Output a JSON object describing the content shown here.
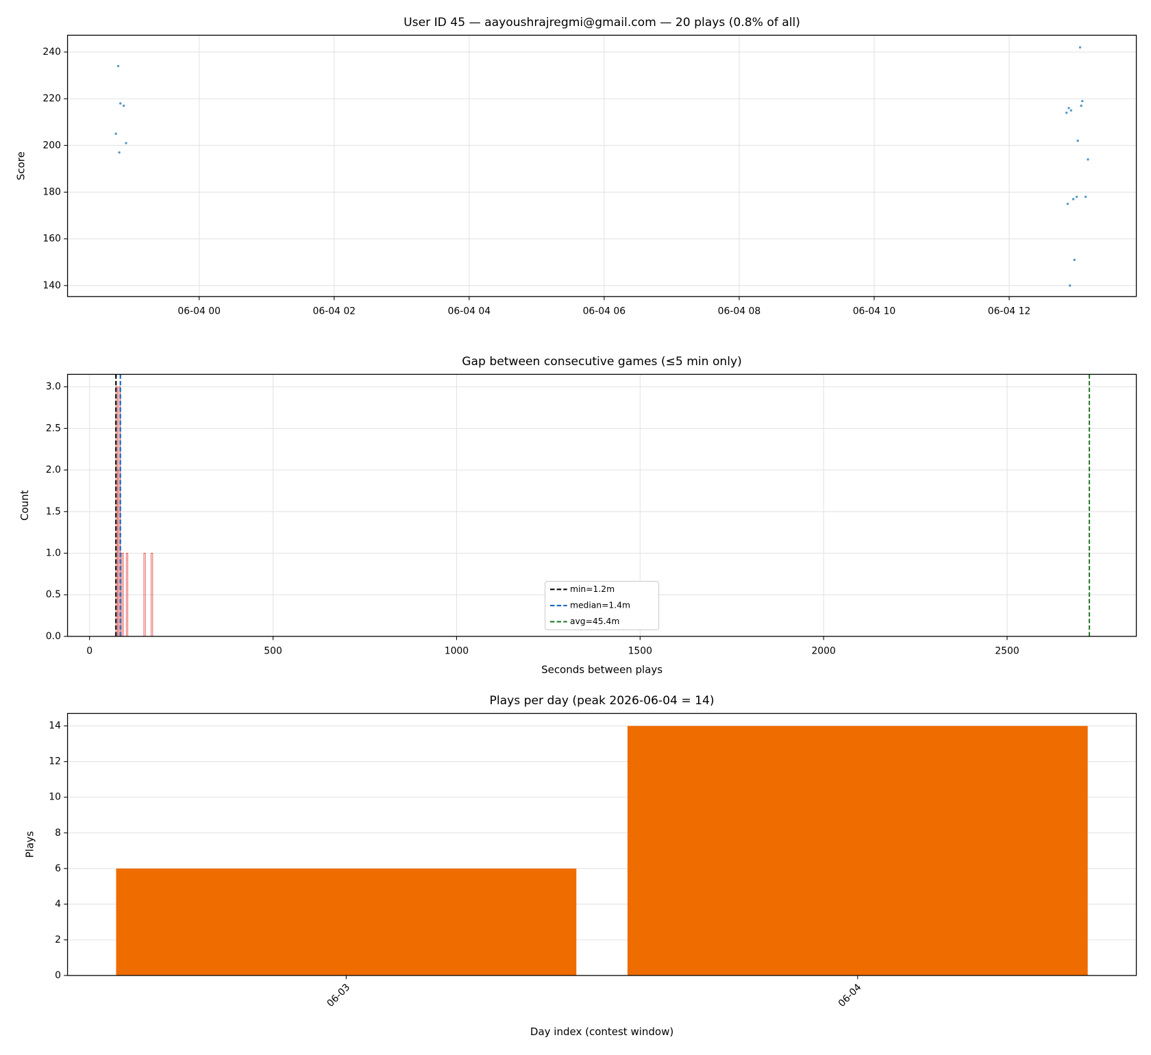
{
  "chart_data": [
    {
      "type": "scatter",
      "title": "User ID 45 — aayoushrajregmi@gmail.com — 20 plays (0.8% of all)",
      "y_label": "Score",
      "x_scale": "time",
      "grid": "both",
      "color": "#1f77b4",
      "x": [
        "06-03 22:48",
        "06-03 22:50",
        "06-03 22:53",
        "06-03 22:46",
        "06-03 22:55",
        "06-03 22:49",
        "06-04 13:03",
        "06-04 13:05",
        "06-04 13:04",
        "06-04 12:53",
        "06-04 12:55",
        "06-04 12:51",
        "06-04 13:01",
        "06-04 13:10",
        "06-04 12:52",
        "06-04 13:08",
        "06-04 13:00",
        "06-04 12:57",
        "06-04 12:58",
        "06-04 12:54"
      ],
      "values": [
        234,
        218,
        217,
        205,
        201,
        197,
        242,
        219,
        217,
        216,
        215,
        214,
        202,
        194,
        175,
        178,
        178,
        177,
        151,
        140
      ],
      "xlim": [
        "06-03 22:03",
        "06-04 13:53"
      ],
      "xticks": [
        "06-04 00",
        "06-04 02",
        "06-04 04",
        "06-04 06",
        "06-04 08",
        "06-04 10",
        "06-04 12"
      ],
      "ylim": [
        135.3,
        247.2
      ],
      "yticks": [
        140,
        160,
        180,
        200,
        220,
        240
      ]
    },
    {
      "type": "histogram",
      "title": "Gap between consecutive games (≤5 min only)",
      "x_label": "Seconds between plays",
      "y_label": "Count",
      "grid": "both",
      "color": "#d62728",
      "bins": [
        72,
        76,
        80,
        84,
        88,
        92,
        96,
        100,
        104,
        108,
        112,
        116,
        120,
        124,
        128,
        132,
        136,
        140,
        144,
        148,
        152,
        156,
        160,
        164,
        168,
        172
      ],
      "counts": [
        3,
        2,
        3,
        1,
        1,
        0,
        0,
        1,
        0,
        0,
        0,
        0,
        0,
        0,
        0,
        0,
        0,
        0,
        0,
        1,
        0,
        0,
        0,
        0,
        1
      ],
      "reference_lines": [
        {
          "name": "min=1.2m",
          "value": 72,
          "color": "#000000"
        },
        {
          "name": "median=1.4m",
          "value": 84,
          "color": "#1565c0"
        },
        {
          "name": "avg=45.4m",
          "value": 2724,
          "color": "#2e7d32"
        }
      ],
      "legend_loc": "lower center",
      "xlim": [
        -60,
        2852
      ],
      "xticks": [
        0,
        500,
        1000,
        1500,
        2000,
        2500
      ],
      "ylim": [
        0,
        3.15
      ],
      "yticks": [
        {
          "value": 0,
          "label": "0.0"
        },
        0.5,
        {
          "value": 1,
          "label": "1.0"
        },
        1.5,
        {
          "value": 2,
          "label": "2.0"
        },
        2.5,
        {
          "value": 3,
          "label": "3.0"
        }
      ]
    },
    {
      "type": "bar",
      "title": "Plays per day (peak 2026-06-04 = 14)",
      "x_label": "Day index (contest window)",
      "y_label": "Plays",
      "grid": "y",
      "color": "#ef6c00",
      "categories": [
        "06-03",
        "06-04"
      ],
      "values": [
        6,
        14
      ],
      "xlim": [
        -0.545,
        1.545
      ],
      "ylim": [
        0,
        14.7
      ],
      "yticks": [
        0,
        2,
        4,
        6,
        8,
        10,
        12,
        14
      ]
    }
  ]
}
